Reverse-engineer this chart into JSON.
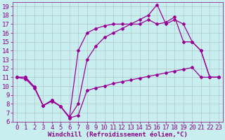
{
  "xlabel": "Windchill (Refroidissement éolien,°C)",
  "bg_color": "#c8eef0",
  "line_color": "#990099",
  "xlim": [
    -0.5,
    23.5
  ],
  "ylim": [
    6,
    19.5
  ],
  "yticks": [
    6,
    7,
    8,
    9,
    10,
    11,
    12,
    13,
    14,
    15,
    16,
    17,
    18,
    19
  ],
  "xticks": [
    0,
    1,
    2,
    3,
    4,
    5,
    6,
    7,
    8,
    9,
    10,
    11,
    12,
    13,
    14,
    15,
    16,
    17,
    18,
    19,
    20,
    21,
    22,
    23
  ],
  "line1_x": [
    0,
    1,
    2,
    3,
    4,
    5,
    6,
    7,
    8,
    9,
    10,
    11,
    12,
    13,
    14,
    15,
    16,
    17,
    18,
    19,
    20,
    21,
    22,
    23
  ],
  "line1_y": [
    11.0,
    10.8,
    9.8,
    7.8,
    8.3,
    7.7,
    6.4,
    6.7,
    9.5,
    9.8,
    10.0,
    10.3,
    10.5,
    10.7,
    10.9,
    11.1,
    11.3,
    11.5,
    11.7,
    11.9,
    12.1,
    11.0,
    11.0,
    11.0
  ],
  "line2_x": [
    0,
    1,
    2,
    3,
    4,
    5,
    6,
    7,
    8,
    9,
    10,
    11,
    12,
    13,
    14,
    15,
    16,
    17,
    18,
    19,
    20,
    21,
    22,
    23
  ],
  "line2_y": [
    11.0,
    11.0,
    9.9,
    7.8,
    8.4,
    7.7,
    6.5,
    14.0,
    16.0,
    16.5,
    16.8,
    17.0,
    17.0,
    17.0,
    17.5,
    18.0,
    19.2,
    17.0,
    17.5,
    17.0,
    15.0,
    14.0,
    11.0,
    11.0
  ],
  "line3_x": [
    0,
    1,
    2,
    3,
    4,
    5,
    6,
    7,
    8,
    9,
    10,
    11,
    12,
    13,
    14,
    15,
    16,
    17,
    18,
    19,
    20,
    21,
    22,
    23
  ],
  "line3_y": [
    11.0,
    11.0,
    9.9,
    7.8,
    8.4,
    7.7,
    6.5,
    8.0,
    13.0,
    14.5,
    15.5,
    16.0,
    16.5,
    17.0,
    17.0,
    17.5,
    17.0,
    17.2,
    17.8,
    15.0,
    15.0,
    14.0,
    11.0,
    11.0
  ],
  "marker": "D",
  "markersize": 2,
  "linewidth": 0.9,
  "grid_color": "#b0c8c8",
  "font_color": "#880088",
  "font_size": 6.5
}
